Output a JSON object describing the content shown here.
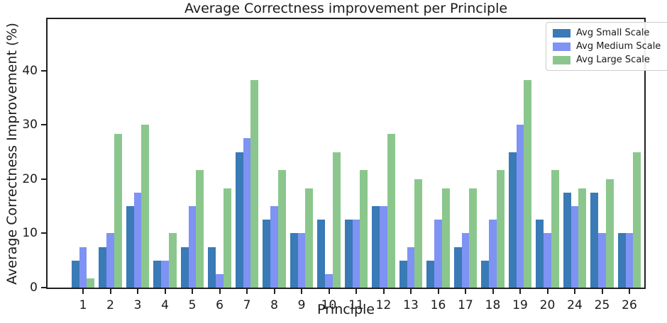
{
  "chart_data": {
    "type": "bar",
    "title": "Average Correctness improvement per Principle",
    "xlabel": "Principle",
    "ylabel": "Average Correctness Improvement (%)",
    "categories": [
      "1",
      "2",
      "3",
      "4",
      "5",
      "6",
      "7",
      "8",
      "9",
      "10",
      "11",
      "12",
      "13",
      "16",
      "17",
      "18",
      "19",
      "20",
      "24",
      "25",
      "26"
    ],
    "series": [
      {
        "name": "Avg Small Scale",
        "color": "#3a7ab6",
        "values": [
          5,
          7.5,
          15,
          5,
          7.5,
          7.5,
          25,
          12.5,
          10,
          12.5,
          12.5,
          15,
          5,
          5,
          7.5,
          5,
          25,
          12.5,
          17.5,
          17.5,
          10
        ]
      },
      {
        "name": "Avg Medium Scale",
        "color": "#7e93f3",
        "values": [
          7.5,
          10,
          17.5,
          5,
          15,
          2.5,
          27.5,
          15,
          10,
          2.5,
          12.5,
          15,
          7.5,
          12.5,
          10,
          12.5,
          30,
          10,
          15,
          10,
          10
        ]
      },
      {
        "name": "Avg Large Scale",
        "color": "#8bc78d",
        "values": [
          1.7,
          28.3,
          30,
          10,
          21.7,
          18.3,
          38.3,
          21.7,
          18.3,
          25,
          21.7,
          28.3,
          20,
          18.3,
          18.3,
          21.7,
          38.3,
          21.7,
          18.3,
          20,
          25
        ]
      }
    ],
    "ylim": [
      0,
      49.5
    ],
    "yticks": [
      0,
      10,
      20,
      30,
      40
    ],
    "grid": false,
    "legend_position": "upper right",
    "spine_color": "#1f1f1f"
  }
}
